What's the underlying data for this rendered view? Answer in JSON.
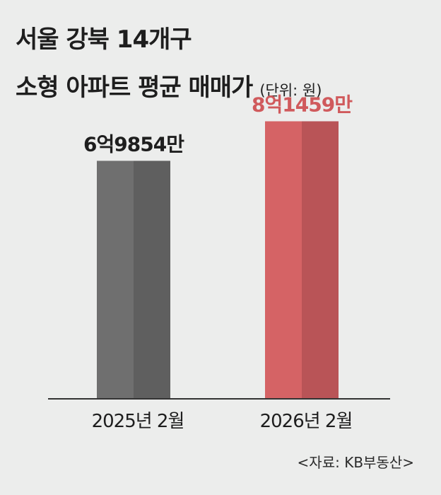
{
  "title": {
    "line1": "서울 강북 14개구",
    "line2": "소형 아파트 평균 매매가",
    "unit_note": "(단위: 원)"
  },
  "source": "<자료: KB부동산>",
  "colors": {
    "background": "#ecedec",
    "bar_2025_light": "#6f6f6f",
    "bar_2025_dark": "#5f5f5f",
    "bar_2026_light": "#d56365",
    "bar_2026_dark": "#b95457",
    "label_2025": "#1e1e1e",
    "label_2026": "#d05a5c"
  },
  "chart_data": {
    "type": "bar",
    "categories": [
      "2025년 2월",
      "2026년 2월"
    ],
    "values": [
      698540000,
      814590000
    ],
    "data_labels": [
      "6억9854만",
      "8억1459만"
    ],
    "unit": "원",
    "ylim": [
      0,
      880000000
    ],
    "grid": false,
    "legend": "none"
  }
}
